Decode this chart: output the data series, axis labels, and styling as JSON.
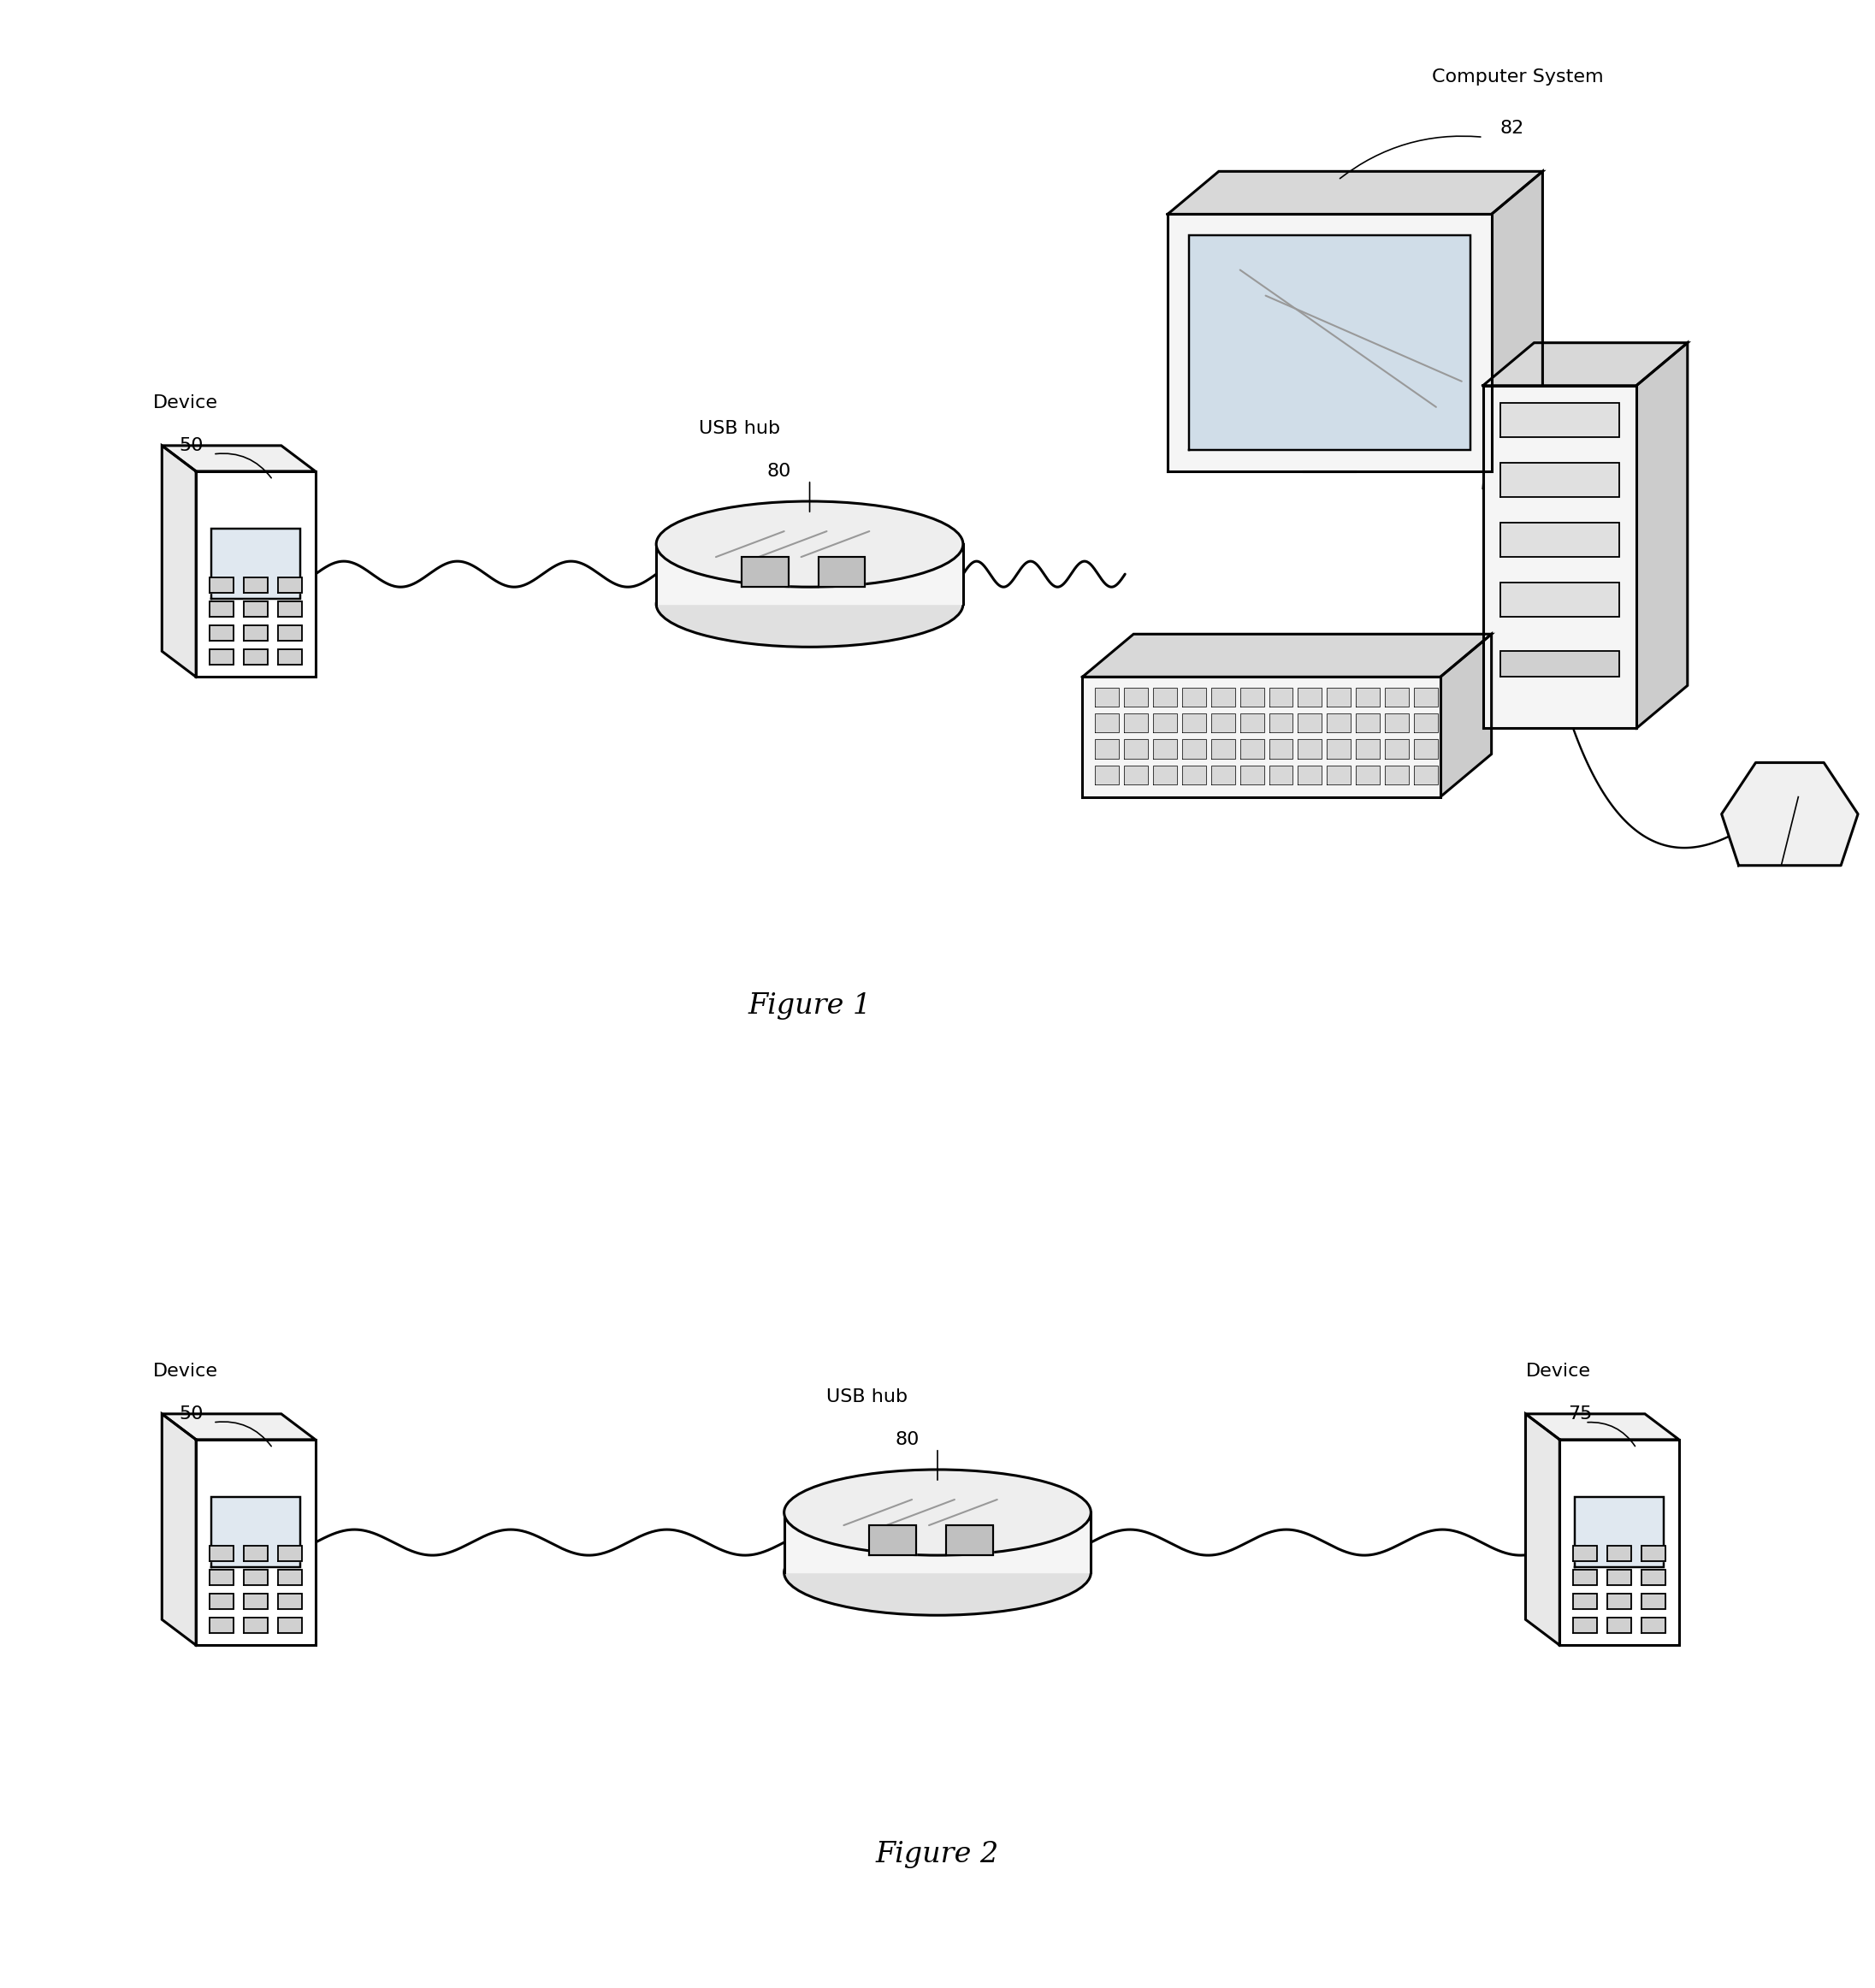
{
  "fig_width": 21.92,
  "fig_height": 23.24,
  "background_color": "#ffffff",
  "fig1_label": "Figure 1",
  "fig2_label": "Figure 2",
  "fig1_comp_label": "Computer System",
  "fig1_comp_num": "82",
  "fig1_device_label": "Device",
  "fig1_device_num": "50",
  "fig1_hub_label": "USB hub",
  "fig1_hub_num": "80",
  "fig2_device1_label": "Device",
  "fig2_device1_num": "50",
  "fig2_hub_label": "USB hub",
  "fig2_hub_num": "80",
  "fig2_device2_label": "Device",
  "fig2_device2_num": "75",
  "lc": "#000000",
  "lw": 2.2
}
